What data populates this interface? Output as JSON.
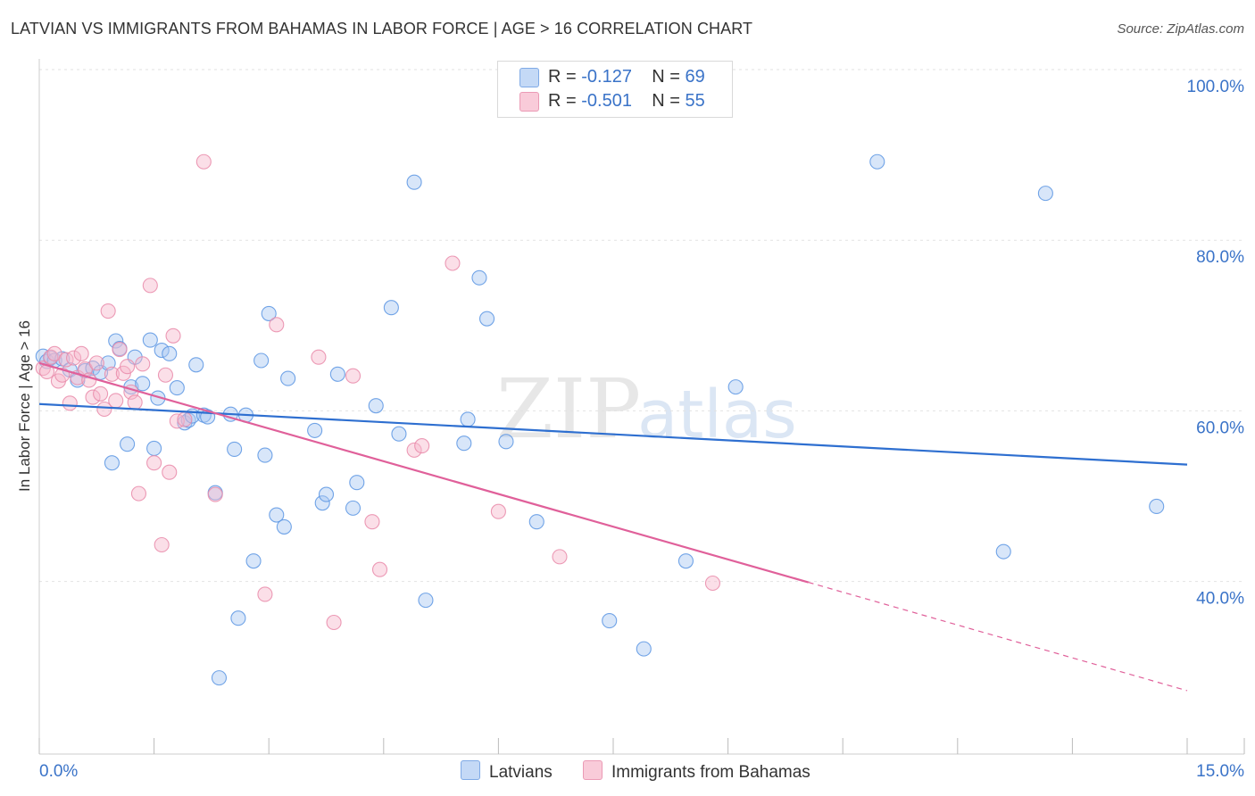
{
  "header": {
    "title": "LATVIAN VS IMMIGRANTS FROM BAHAMAS IN LABOR FORCE | AGE > 16 CORRELATION CHART",
    "source": "Source: ZipAtlas.com"
  },
  "watermark": {
    "part1": "ZIP",
    "part2": "atlas"
  },
  "legend": {
    "rows": [
      {
        "r_label": "R =",
        "r_value": "-0.127",
        "n_label": "N =",
        "n_value": "69",
        "color": "#a9c8f2"
      },
      {
        "r_label": "R =",
        "r_value": "-0.501",
        "n_label": "N =",
        "n_value": "55",
        "color": "#f6b8cc"
      }
    ]
  },
  "chart_data": {
    "type": "scatter",
    "title": "LATVIAN VS IMMIGRANTS FROM BAHAMAS IN LABOR FORCE | AGE > 16 CORRELATION CHART",
    "xlabel": "",
    "ylabel": "In Labor Force | Age > 16",
    "xlim": [
      0,
      15
    ],
    "ylim": [
      20,
      103
    ],
    "x_tick_labels": [
      {
        "value": 0,
        "label": "0.0%"
      },
      {
        "value": 15,
        "label": "15.0%"
      }
    ],
    "y_tick_labels": [
      {
        "value": 100,
        "label": "100.0%"
      },
      {
        "value": 80,
        "label": "80.0%"
      },
      {
        "value": 60,
        "label": "60.0%"
      },
      {
        "value": 40,
        "label": "40.0%"
      }
    ],
    "grid": true,
    "legend_position": "top-center",
    "series": [
      {
        "name": "Latvians",
        "color": "#5b95e3",
        "fill": "#a9c8f2",
        "trend": {
          "x": [
            0,
            15
          ],
          "y": [
            60.8,
            53.7
          ],
          "color": "#2e6fd0"
        },
        "points": [
          [
            0.05,
            66.4
          ],
          [
            0.1,
            65.8
          ],
          [
            0.15,
            66.2
          ],
          [
            0.2,
            65.9
          ],
          [
            0.3,
            66.1
          ],
          [
            0.4,
            64.8
          ],
          [
            0.5,
            63.6
          ],
          [
            0.6,
            64.7
          ],
          [
            0.7,
            65.0
          ],
          [
            0.8,
            64.5
          ],
          [
            0.9,
            65.6
          ],
          [
            0.95,
            53.9
          ],
          [
            1.0,
            68.2
          ],
          [
            1.05,
            67.3
          ],
          [
            1.15,
            56.1
          ],
          [
            1.2,
            62.8
          ],
          [
            1.25,
            66.3
          ],
          [
            1.35,
            63.2
          ],
          [
            1.45,
            68.3
          ],
          [
            1.5,
            55.6
          ],
          [
            1.55,
            61.5
          ],
          [
            1.6,
            67.1
          ],
          [
            1.7,
            66.7
          ],
          [
            1.8,
            62.7
          ],
          [
            1.9,
            58.6
          ],
          [
            1.95,
            58.9
          ],
          [
            2.0,
            59.4
          ],
          [
            2.05,
            65.4
          ],
          [
            2.15,
            59.5
          ],
          [
            2.2,
            59.3
          ],
          [
            2.3,
            50.4
          ],
          [
            2.35,
            28.7
          ],
          [
            2.5,
            59.6
          ],
          [
            2.55,
            55.5
          ],
          [
            2.6,
            35.7
          ],
          [
            2.7,
            59.5
          ],
          [
            2.8,
            42.4
          ],
          [
            2.9,
            65.9
          ],
          [
            2.95,
            54.8
          ],
          [
            3.0,
            71.4
          ],
          [
            3.1,
            47.8
          ],
          [
            3.2,
            46.4
          ],
          [
            3.25,
            63.8
          ],
          [
            3.6,
            57.7
          ],
          [
            3.7,
            49.2
          ],
          [
            3.75,
            50.2
          ],
          [
            3.9,
            64.3
          ],
          [
            4.1,
            48.6
          ],
          [
            4.15,
            51.6
          ],
          [
            4.4,
            60.6
          ],
          [
            4.6,
            72.1
          ],
          [
            4.7,
            57.3
          ],
          [
            4.9,
            86.8
          ],
          [
            5.05,
            37.8
          ],
          [
            5.55,
            56.2
          ],
          [
            5.6,
            59.0
          ],
          [
            5.75,
            75.6
          ],
          [
            5.85,
            70.8
          ],
          [
            6.1,
            56.4
          ],
          [
            6.5,
            47.0
          ],
          [
            7.45,
            35.4
          ],
          [
            7.9,
            32.1
          ],
          [
            8.45,
            42.4
          ],
          [
            9.1,
            62.8
          ],
          [
            10.95,
            89.2
          ],
          [
            12.6,
            43.5
          ],
          [
            13.15,
            85.5
          ],
          [
            14.6,
            48.8
          ]
        ]
      },
      {
        "name": "Immigrants from Bahamas",
        "color": "#e98aa9",
        "fill": "#f6b8cc",
        "trend": {
          "x": [
            0,
            10.05
          ],
          "y": [
            65.6,
            39.9
          ],
          "color": "#e0609a",
          "dashed_to": {
            "x": 15,
            "y": 27.2
          }
        },
        "points": [
          [
            0.05,
            65.0
          ],
          [
            0.1,
            64.6
          ],
          [
            0.15,
            66.3
          ],
          [
            0.2,
            66.7
          ],
          [
            0.25,
            63.5
          ],
          [
            0.3,
            64.2
          ],
          [
            0.35,
            66.0
          ],
          [
            0.4,
            60.9
          ],
          [
            0.45,
            66.2
          ],
          [
            0.5,
            63.9
          ],
          [
            0.55,
            66.7
          ],
          [
            0.6,
            64.9
          ],
          [
            0.65,
            63.6
          ],
          [
            0.7,
            61.6
          ],
          [
            0.75,
            65.6
          ],
          [
            0.8,
            62.0
          ],
          [
            0.85,
            60.2
          ],
          [
            0.9,
            71.7
          ],
          [
            0.95,
            64.3
          ],
          [
            1.0,
            61.2
          ],
          [
            1.05,
            67.2
          ],
          [
            1.1,
            64.4
          ],
          [
            1.15,
            65.2
          ],
          [
            1.2,
            62.2
          ],
          [
            1.25,
            61.0
          ],
          [
            1.3,
            50.3
          ],
          [
            1.35,
            65.5
          ],
          [
            1.45,
            74.7
          ],
          [
            1.5,
            53.9
          ],
          [
            1.6,
            44.3
          ],
          [
            1.65,
            64.2
          ],
          [
            1.7,
            52.8
          ],
          [
            1.75,
            68.8
          ],
          [
            1.8,
            58.8
          ],
          [
            1.9,
            59.0
          ],
          [
            2.15,
            89.2
          ],
          [
            2.3,
            50.2
          ],
          [
            2.95,
            38.5
          ],
          [
            3.1,
            70.1
          ],
          [
            3.65,
            66.3
          ],
          [
            3.85,
            35.2
          ],
          [
            4.1,
            64.1
          ],
          [
            4.35,
            47.0
          ],
          [
            4.45,
            41.4
          ],
          [
            4.9,
            55.4
          ],
          [
            5.0,
            55.9
          ],
          [
            5.4,
            77.3
          ],
          [
            6.0,
            48.2
          ],
          [
            6.8,
            42.9
          ],
          [
            8.8,
            39.8
          ]
        ]
      }
    ]
  }
}
